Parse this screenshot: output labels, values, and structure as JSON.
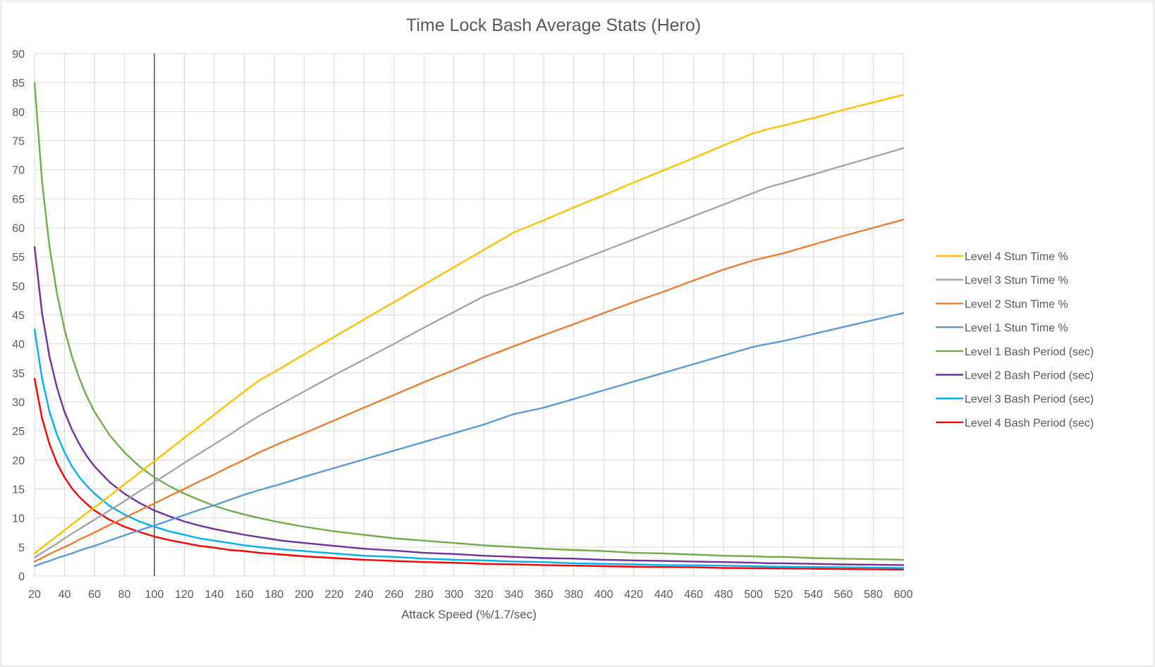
{
  "chart_data": {
    "type": "line",
    "title": "Time Lock Bash Average Stats (Hero)",
    "xlabel": "Attack Speed (%/1.7/sec)",
    "ylabel": "",
    "xlim": [
      20,
      600
    ],
    "ylim": [
      0,
      90
    ],
    "x_ticks": [
      20,
      40,
      60,
      80,
      100,
      120,
      140,
      160,
      180,
      200,
      220,
      240,
      260,
      280,
      300,
      320,
      340,
      360,
      380,
      400,
      420,
      440,
      460,
      480,
      500,
      520,
      540,
      560,
      580,
      600
    ],
    "y_ticks": [
      0,
      5,
      10,
      15,
      20,
      25,
      30,
      35,
      40,
      45,
      50,
      55,
      60,
      65,
      70,
      75,
      80,
      85,
      90
    ],
    "grid": true,
    "legend_position": "right",
    "reference_line_x": 100,
    "x": [
      20,
      25,
      30,
      35,
      40,
      45,
      50,
      55,
      60,
      70,
      80,
      90,
      100,
      110,
      120,
      130,
      140,
      150,
      160,
      170,
      185,
      200,
      220,
      240,
      260,
      280,
      300,
      320,
      340,
      360,
      380,
      400,
      420,
      440,
      460,
      480,
      500,
      510,
      520,
      540,
      560,
      580,
      600
    ],
    "series": [
      {
        "name": "Level 4 Stun Time %",
        "color": "#FFC000",
        "values": [
          3.9,
          4.9,
          5.9,
          6.9,
          7.9,
          8.9,
          9.9,
          10.9,
          11.8,
          13.8,
          15.8,
          17.8,
          19.8,
          21.8,
          23.8,
          25.8,
          27.8,
          29.8,
          31.8,
          33.7,
          35.9,
          38.2,
          41.2,
          44.2,
          47.2,
          50.2,
          53.2,
          56.2,
          59.2,
          61.3,
          63.5,
          65.6,
          67.8,
          69.9,
          72.0,
          74.2,
          76.3,
          77.0,
          77.6,
          78.9,
          80.3,
          81.6,
          82.9
        ]
      },
      {
        "name": "Level 3 Stun Time %",
        "color": "#A5A5A5",
        "values": [
          3.2,
          4.0,
          4.8,
          5.6,
          6.5,
          7.3,
          8.1,
          8.9,
          9.7,
          11.3,
          12.9,
          14.6,
          16.2,
          17.8,
          19.5,
          21.1,
          22.7,
          24.3,
          26.0,
          27.6,
          29.7,
          31.8,
          34.6,
          37.3,
          40.0,
          42.8,
          45.5,
          48.2,
          50.0,
          52.0,
          54.0,
          56.0,
          58.0,
          60.0,
          62.0,
          64.0,
          66.0,
          67.0,
          67.7,
          69.2,
          70.7,
          72.2,
          73.7
        ]
      },
      {
        "name": "Level 2 Stun Time %",
        "color": "#ED7D31",
        "values": [
          2.5,
          3.1,
          3.8,
          4.4,
          5.0,
          5.6,
          6.3,
          6.9,
          7.5,
          8.8,
          10.0,
          11.3,
          12.5,
          13.8,
          15.0,
          16.3,
          17.5,
          18.8,
          20.0,
          21.3,
          23.0,
          24.6,
          26.8,
          29.0,
          31.2,
          33.4,
          35.5,
          37.6,
          39.6,
          41.5,
          43.4,
          45.3,
          47.2,
          49.0,
          50.9,
          52.8,
          54.4,
          55.0,
          55.6,
          57.1,
          58.6,
          60.0,
          61.4
        ]
      },
      {
        "name": "Level 1 Stun Time %",
        "color": "#5B9BD5",
        "values": [
          1.7,
          2.2,
          2.6,
          3.1,
          3.5,
          3.9,
          4.4,
          4.8,
          5.2,
          6.1,
          7.0,
          7.9,
          8.7,
          9.6,
          10.5,
          11.4,
          12.2,
          13.1,
          14.0,
          14.8,
          15.9,
          17.1,
          18.6,
          20.1,
          21.6,
          23.1,
          24.6,
          26.1,
          27.9,
          29.0,
          30.5,
          32.0,
          33.5,
          35.0,
          36.5,
          38.0,
          39.5,
          40.0,
          40.5,
          41.7,
          42.9,
          44.1,
          45.3
        ]
      },
      {
        "name": "Level 1 Bash Period (sec)",
        "color": "#70AD47",
        "values": [
          85.0,
          68.0,
          56.7,
          48.6,
          42.5,
          37.8,
          34.0,
          30.9,
          28.3,
          24.3,
          21.3,
          18.9,
          17.0,
          15.5,
          14.2,
          13.1,
          12.1,
          11.3,
          10.6,
          10.0,
          9.2,
          8.5,
          7.7,
          7.1,
          6.5,
          6.1,
          5.7,
          5.3,
          5.0,
          4.7,
          4.5,
          4.3,
          4.0,
          3.9,
          3.7,
          3.5,
          3.4,
          3.3,
          3.3,
          3.1,
          3.0,
          2.9,
          2.8
        ]
      },
      {
        "name": "Level 2 Bash Period (sec)",
        "color": "#7030A0",
        "values": [
          56.7,
          45.3,
          37.8,
          32.4,
          28.3,
          25.2,
          22.7,
          20.6,
          18.9,
          16.2,
          14.2,
          12.6,
          11.3,
          10.3,
          9.4,
          8.7,
          8.1,
          7.6,
          7.1,
          6.7,
          6.1,
          5.7,
          5.2,
          4.7,
          4.4,
          4.0,
          3.8,
          3.5,
          3.3,
          3.1,
          3.0,
          2.8,
          2.7,
          2.6,
          2.5,
          2.4,
          2.3,
          2.2,
          2.2,
          2.1,
          2.0,
          1.95,
          1.9
        ]
      },
      {
        "name": "Level 3 Bash Period (sec)",
        "color": "#00B0F0",
        "values": [
          42.5,
          34.0,
          28.3,
          24.3,
          21.3,
          18.9,
          17.0,
          15.5,
          14.2,
          12.1,
          10.6,
          9.4,
          8.5,
          7.7,
          7.1,
          6.5,
          6.1,
          5.7,
          5.3,
          5.0,
          4.6,
          4.3,
          3.9,
          3.5,
          3.3,
          3.0,
          2.8,
          2.7,
          2.5,
          2.4,
          2.2,
          2.1,
          2.0,
          1.9,
          1.85,
          1.8,
          1.7,
          1.65,
          1.6,
          1.55,
          1.5,
          1.45,
          1.4
        ]
      },
      {
        "name": "Level 4 Bash Period (sec)",
        "color": "#FF0000",
        "values": [
          34.0,
          27.2,
          22.7,
          19.4,
          17.0,
          15.1,
          13.6,
          12.4,
          11.3,
          9.7,
          8.5,
          7.6,
          6.8,
          6.2,
          5.7,
          5.2,
          4.9,
          4.5,
          4.3,
          4.0,
          3.7,
          3.4,
          3.1,
          2.8,
          2.6,
          2.4,
          2.3,
          2.1,
          2.0,
          1.9,
          1.8,
          1.7,
          1.6,
          1.55,
          1.5,
          1.4,
          1.36,
          1.33,
          1.3,
          1.25,
          1.2,
          1.17,
          1.13
        ]
      }
    ]
  }
}
